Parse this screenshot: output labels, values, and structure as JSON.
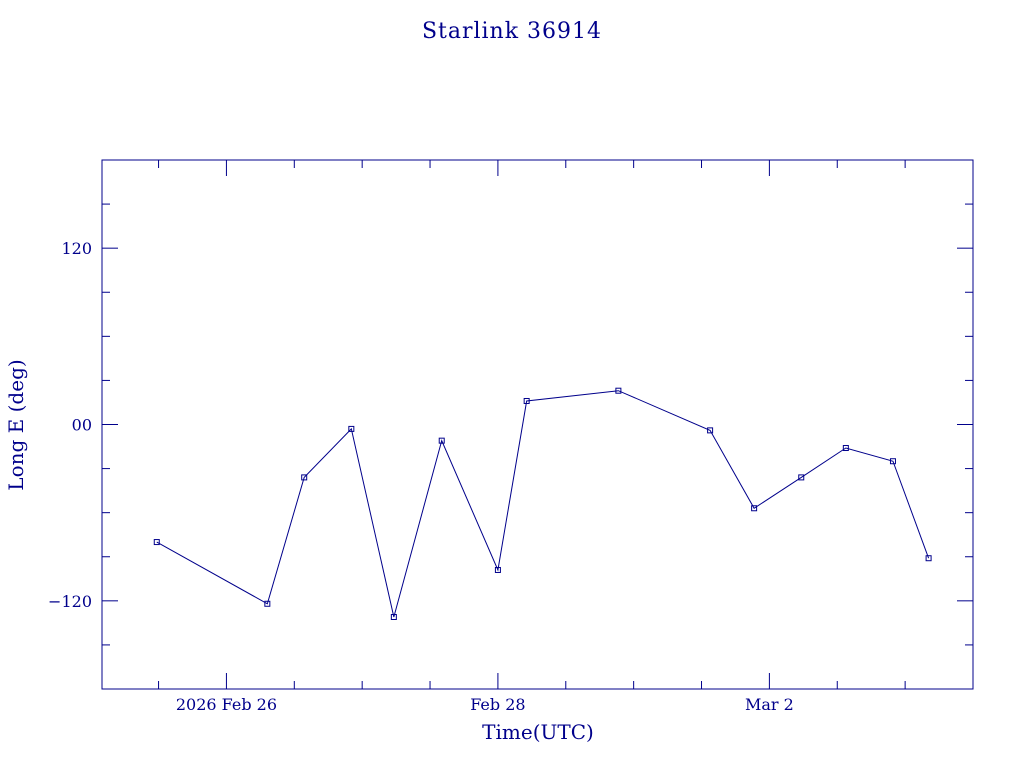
{
  "chart_data": {
    "type": "line",
    "title": "Starlink 36914",
    "xlabel": "Time(UTC)",
    "ylabel": "Long E (deg)",
    "xlim": [
      "2026-02-25 02:00",
      "2026-03-03 12:00"
    ],
    "ylim": [
      -180,
      180
    ],
    "x_tick_labels": [
      {
        "x": "2026-02-26 00:00",
        "label": "2026 Feb 26"
      },
      {
        "x": "2026-02-28 00:00",
        "label": "Feb 28"
      },
      {
        "x": "2026-03-02 00:00",
        "label": "Mar  2"
      }
    ],
    "y_tick_labels": [
      {
        "y": 120,
        "label": "120"
      },
      {
        "y": 0,
        "label": "00"
      },
      {
        "y": -120,
        "label": "−120"
      }
    ],
    "grid": false,
    "series": [
      {
        "points": [
          {
            "x": "2026-02-25 11:41",
            "y": -80
          },
          {
            "x": "2026-02-26 07:14",
            "y": -122
          },
          {
            "x": "2026-02-26 13:45",
            "y": -36
          },
          {
            "x": "2026-02-26 22:05",
            "y": -3
          },
          {
            "x": "2026-02-27 05:36",
            "y": -131
          },
          {
            "x": "2026-02-27 14:04",
            "y": -11
          },
          {
            "x": "2026-02-28 00:00",
            "y": -99
          },
          {
            "x": "2026-02-28 05:05",
            "y": 16
          },
          {
            "x": "2026-02-28 21:18",
            "y": 23
          },
          {
            "x": "2026-03-01 13:31",
            "y": -4
          },
          {
            "x": "2026-03-01 21:18",
            "y": -57
          },
          {
            "x": "2026-03-02 05:38",
            "y": -36
          },
          {
            "x": "2026-03-02 13:31",
            "y": -16
          },
          {
            "x": "2026-03-02 21:51",
            "y": -25
          },
          {
            "x": "2026-03-03 04:09",
            "y": -91
          }
        ]
      }
    ],
    "colors": {
      "axis": "#00008b",
      "line": "#00008b"
    }
  }
}
